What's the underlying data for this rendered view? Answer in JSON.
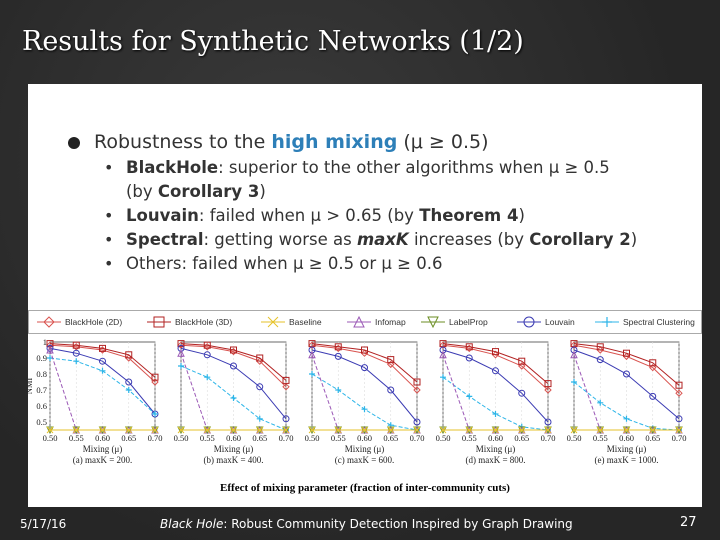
{
  "slide": {
    "title": "Results for Synthetic Networks (1/2)",
    "bullet_main": {
      "prefix": "Robustness to the ",
      "highlight": "high mixing",
      "suffix": " (μ ≥ 0.5)"
    },
    "sub_bullets": [
      {
        "bold": "BlackHole",
        "text": ": superior to the other algorithms when μ  ≥ 0.5",
        "line2_prefix": "(by ",
        "line2_bold": "Corollary 3",
        "line2_suffix": ")"
      },
      {
        "bold": "Louvain",
        "text": ": failed when μ > 0.65 (by ",
        "bold2": "Theorem 4",
        "suffix": ")"
      },
      {
        "bold": "Spectral",
        "text": ": getting worse as ",
        "bold2": "maxK",
        "text2": " increases (by ",
        "bold3": "Corollary 2",
        "suffix": ")"
      },
      {
        "plain": "Others: failed when μ  ≥ 0.5 or μ  ≥ 0.6"
      }
    ],
    "caption": "Effect of mixing parameter (fraction of inter-community cuts)",
    "footer_date": "5/17/16",
    "footer_title_italic": "Black Hole",
    "footer_title_rest": ": Robust Community Detection Inspired by Graph Drawing",
    "page_number": "27"
  },
  "legend": [
    {
      "name": "BlackHole (2D)",
      "color": "#d9534f",
      "marker": "diamond"
    },
    {
      "name": "BlackHole (3D)",
      "color": "#b22222",
      "marker": "square"
    },
    {
      "name": "Baseline",
      "color": "#e6c229",
      "marker": "x"
    },
    {
      "name": "Infomap",
      "color": "#9b59b6",
      "marker": "triangle"
    },
    {
      "name": "LabelProp",
      "color": "#6b8e23",
      "marker": "triangle-down"
    },
    {
      "name": "Louvain",
      "color": "#3b3bb3",
      "marker": "circle"
    },
    {
      "name": "Spectral Clustering",
      "color": "#2cb5e8",
      "marker": "plus"
    }
  ],
  "chart_data": [
    {
      "type": "line",
      "caption": "(a) maxK = 200.",
      "x": [
        0.5,
        0.55,
        0.6,
        0.65,
        0.7
      ],
      "xlabel": "Mixing (μ)",
      "ylabel": "NMI",
      "ylim": [
        0.45,
        1.0
      ],
      "yticks": [
        "1",
        "0.9",
        "0.8",
        "0.7",
        "0.6",
        "0.5"
      ],
      "series": [
        {
          "name": "BlackHole (2D)",
          "values": [
            0.98,
            0.97,
            0.95,
            0.9,
            0.75
          ]
        },
        {
          "name": "BlackHole (3D)",
          "values": [
            0.99,
            0.98,
            0.96,
            0.92,
            0.78
          ]
        },
        {
          "name": "Louvain",
          "values": [
            0.96,
            0.93,
            0.88,
            0.75,
            0.55
          ]
        },
        {
          "name": "Spectral Clustering",
          "values": [
            0.9,
            0.88,
            0.82,
            0.7,
            0.55
          ]
        },
        {
          "name": "Infomap",
          "values": [
            0.95,
            0.45,
            0.45,
            0.45,
            0.45
          ]
        },
        {
          "name": "LabelProp",
          "values": [
            0.45,
            0.45,
            0.45,
            0.45,
            0.45
          ]
        },
        {
          "name": "Baseline",
          "values": [
            0.45,
            0.45,
            0.45,
            0.45,
            0.45
          ]
        }
      ]
    },
    {
      "type": "line",
      "caption": "(b) maxK = 400.",
      "x": [
        0.5,
        0.55,
        0.6,
        0.65,
        0.7
      ],
      "xlabel": "Mixing (μ)",
      "ylim": [
        0.45,
        1.0
      ],
      "series": [
        {
          "name": "BlackHole (2D)",
          "values": [
            0.98,
            0.97,
            0.94,
            0.88,
            0.72
          ]
        },
        {
          "name": "BlackHole (3D)",
          "values": [
            0.99,
            0.98,
            0.95,
            0.9,
            0.76
          ]
        },
        {
          "name": "Louvain",
          "values": [
            0.96,
            0.92,
            0.85,
            0.72,
            0.52
          ]
        },
        {
          "name": "Spectral Clustering",
          "values": [
            0.85,
            0.78,
            0.65,
            0.52,
            0.45
          ]
        },
        {
          "name": "Infomap",
          "values": [
            0.93,
            0.45,
            0.45,
            0.45,
            0.45
          ]
        },
        {
          "name": "LabelProp",
          "values": [
            0.45,
            0.45,
            0.45,
            0.45,
            0.45
          ]
        },
        {
          "name": "Baseline",
          "values": [
            0.45,
            0.45,
            0.45,
            0.45,
            0.45
          ]
        }
      ]
    },
    {
      "type": "line",
      "caption": "(c) maxK = 600.",
      "x": [
        0.5,
        0.55,
        0.6,
        0.65,
        0.7
      ],
      "xlabel": "Mixing (μ)",
      "ylim": [
        0.45,
        1.0
      ],
      "series": [
        {
          "name": "BlackHole (2D)",
          "values": [
            0.98,
            0.96,
            0.93,
            0.86,
            0.7
          ]
        },
        {
          "name": "BlackHole (3D)",
          "values": [
            0.99,
            0.97,
            0.95,
            0.89,
            0.75
          ]
        },
        {
          "name": "Louvain",
          "values": [
            0.95,
            0.91,
            0.84,
            0.7,
            0.5
          ]
        },
        {
          "name": "Spectral Clustering",
          "values": [
            0.8,
            0.7,
            0.58,
            0.48,
            0.45
          ]
        },
        {
          "name": "Infomap",
          "values": [
            0.92,
            0.45,
            0.45,
            0.45,
            0.45
          ]
        },
        {
          "name": "LabelProp",
          "values": [
            0.45,
            0.45,
            0.45,
            0.45,
            0.45
          ]
        },
        {
          "name": "Baseline",
          "values": [
            0.45,
            0.45,
            0.45,
            0.45,
            0.45
          ]
        }
      ]
    },
    {
      "type": "line",
      "caption": "(d) maxK = 800.",
      "x": [
        0.5,
        0.55,
        0.6,
        0.65,
        0.7
      ],
      "xlabel": "Mixing (μ)",
      "ylim": [
        0.45,
        1.0
      ],
      "series": [
        {
          "name": "BlackHole (2D)",
          "values": [
            0.98,
            0.96,
            0.92,
            0.85,
            0.7
          ]
        },
        {
          "name": "BlackHole (3D)",
          "values": [
            0.99,
            0.97,
            0.94,
            0.88,
            0.74
          ]
        },
        {
          "name": "Louvain",
          "values": [
            0.95,
            0.9,
            0.82,
            0.68,
            0.5
          ]
        },
        {
          "name": "Spectral Clustering",
          "values": [
            0.78,
            0.66,
            0.55,
            0.47,
            0.45
          ]
        },
        {
          "name": "Infomap",
          "values": [
            0.92,
            0.45,
            0.45,
            0.45,
            0.45
          ]
        },
        {
          "name": "LabelProp",
          "values": [
            0.45,
            0.45,
            0.45,
            0.45,
            0.45
          ]
        },
        {
          "name": "Baseline",
          "values": [
            0.45,
            0.45,
            0.45,
            0.45,
            0.45
          ]
        }
      ]
    },
    {
      "type": "line",
      "caption": "(e) maxK = 1000.",
      "x": [
        0.5,
        0.55,
        0.6,
        0.65,
        0.7
      ],
      "xlabel": "Mixing (μ)",
      "ylim": [
        0.45,
        1.0
      ],
      "series": [
        {
          "name": "BlackHole (2D)",
          "values": [
            0.98,
            0.95,
            0.91,
            0.84,
            0.68
          ]
        },
        {
          "name": "BlackHole (3D)",
          "values": [
            0.99,
            0.97,
            0.93,
            0.87,
            0.73
          ]
        },
        {
          "name": "Louvain",
          "values": [
            0.95,
            0.89,
            0.8,
            0.66,
            0.52
          ]
        },
        {
          "name": "Spectral Clustering",
          "values": [
            0.75,
            0.62,
            0.52,
            0.46,
            0.45
          ]
        },
        {
          "name": "Infomap",
          "values": [
            0.92,
            0.45,
            0.45,
            0.45,
            0.45
          ]
        },
        {
          "name": "LabelProp",
          "values": [
            0.45,
            0.45,
            0.45,
            0.45,
            0.45
          ]
        },
        {
          "name": "Baseline",
          "values": [
            0.45,
            0.45,
            0.45,
            0.45,
            0.45
          ]
        }
      ]
    }
  ]
}
